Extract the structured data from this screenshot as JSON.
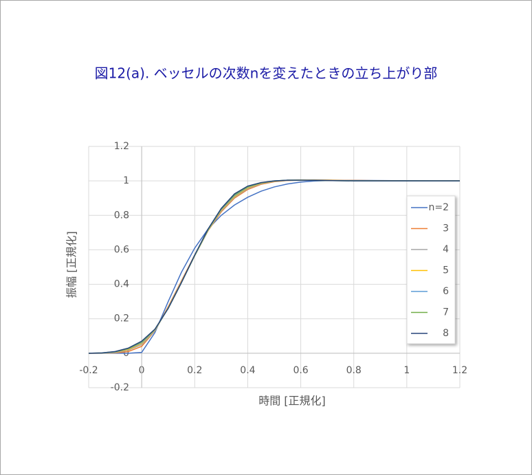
{
  "chart_data": {
    "type": "line",
    "title": "図12(a). ベッセルの次数nを変えたときの立ち上がり部",
    "x_label": "時間 [正規化]",
    "y_label": "振幅 [正規化]",
    "x": [
      -0.2,
      -0.15,
      -0.1,
      -0.05,
      0,
      0.05,
      0.1,
      0.15,
      0.2,
      0.25,
      0.3,
      0.35,
      0.4,
      0.45,
      0.5,
      0.55,
      0.6,
      0.65,
      0.7,
      0.8,
      0.9,
      1.0,
      1.1,
      1.2
    ],
    "series": [
      {
        "name": "n=2",
        "color": "#4472c4",
        "values": [
          0,
          0,
          0,
          0,
          0.005,
          0.12,
          0.3,
          0.47,
          0.61,
          0.72,
          0.8,
          0.86,
          0.905,
          0.94,
          0.965,
          0.982,
          0.993,
          0.999,
          1.002,
          1.003,
          1.002,
          1.001,
          1,
          1
        ]
      },
      {
        "name": "3",
        "color": "#ed7d31",
        "values": [
          0,
          0,
          0.002,
          0.01,
          0.04,
          0.13,
          0.27,
          0.42,
          0.57,
          0.71,
          0.82,
          0.9,
          0.95,
          0.98,
          0.995,
          1.002,
          1.005,
          1.006,
          1.005,
          1.003,
          1.001,
          1,
          1,
          1
        ]
      },
      {
        "name": "4",
        "color": "#a5a5a5",
        "values": [
          0,
          0,
          0.004,
          0.018,
          0.05,
          0.13,
          0.265,
          0.415,
          0.565,
          0.71,
          0.825,
          0.905,
          0.955,
          0.983,
          0.997,
          1.003,
          1.005,
          1.005,
          1.004,
          1.002,
          1,
          1,
          1,
          1
        ]
      },
      {
        "name": "5",
        "color": "#ffc000",
        "values": [
          0,
          0.001,
          0.006,
          0.022,
          0.058,
          0.135,
          0.262,
          0.412,
          0.565,
          0.712,
          0.83,
          0.91,
          0.96,
          0.986,
          0.998,
          1.004,
          1.005,
          1.004,
          1.003,
          1.001,
          1,
          1,
          1,
          1
        ]
      },
      {
        "name": "6",
        "color": "#5b9bd5",
        "values": [
          0,
          0.001,
          0.007,
          0.026,
          0.062,
          0.137,
          0.26,
          0.41,
          0.566,
          0.715,
          0.834,
          0.915,
          0.964,
          0.988,
          0.999,
          1.004,
          1.004,
          1.004,
          1.002,
          1.001,
          1,
          1,
          1,
          1
        ]
      },
      {
        "name": "7",
        "color": "#70ad47",
        "values": [
          0,
          0.002,
          0.009,
          0.028,
          0.066,
          0.139,
          0.26,
          0.41,
          0.568,
          0.718,
          0.838,
          0.92,
          0.967,
          0.989,
          1,
          1.004,
          1.004,
          1.003,
          1.002,
          1,
          1,
          1,
          1,
          1
        ]
      },
      {
        "name": "8",
        "color": "#264478",
        "values": [
          0,
          0.002,
          0.01,
          0.03,
          0.07,
          0.14,
          0.26,
          0.41,
          0.57,
          0.72,
          0.84,
          0.925,
          0.97,
          0.99,
          1,
          1.004,
          1.004,
          1.003,
          1.002,
          1,
          1,
          1,
          1,
          1
        ]
      }
    ],
    "xlim": [
      -0.2,
      1.2
    ],
    "ylim": [
      -0.2,
      1.2
    ],
    "xticks": [
      -0.2,
      0,
      0.2,
      0.4,
      0.6,
      0.8,
      1,
      1.2
    ],
    "yticks": [
      -0.2,
      0,
      0.2,
      0.4,
      0.6,
      0.8,
      1,
      1.2
    ],
    "grid": true
  }
}
